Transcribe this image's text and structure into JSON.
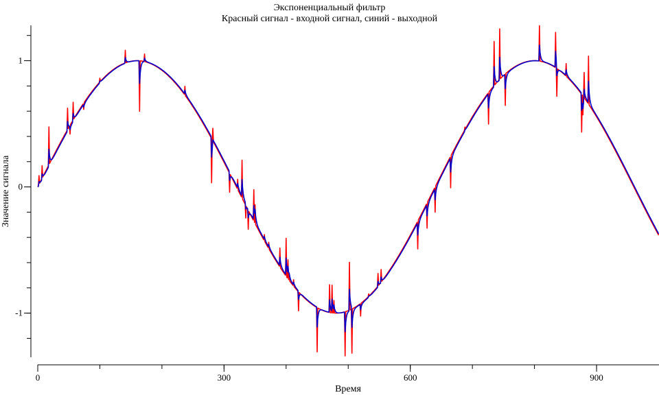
{
  "chart_data": {
    "type": "line",
    "title": "Экспоненциальный фильтр",
    "subtitle": "Красный сигнал - входной сигнал, синий - выходной",
    "xlabel": "Время",
    "ylabel": "Значение сигнала",
    "xlim": [
      0,
      1000
    ],
    "ylim": [
      -1.35,
      1.28
    ],
    "x_ticks": [
      0,
      300,
      600,
      900
    ],
    "x_tick_labels": [
      "0",
      "300",
      "600",
      "900"
    ],
    "x_minor_step": 100,
    "y_ticks": [
      1,
      0,
      -1
    ],
    "y_tick_labels": [
      "1",
      "0",
      "-1"
    ],
    "y_minor_step": 0.2,
    "grid": false,
    "legend": "none",
    "series": [
      {
        "color": "#ff0000",
        "role": "input",
        "base": "sin(2*pi*t/640)",
        "x_range": [
          0,
          1000
        ],
        "spikes": [
          [
            2,
            0.07
          ],
          [
            7,
            0.1
          ],
          [
            18,
            0.3
          ],
          [
            48,
            0.17
          ],
          [
            52,
            -0.07
          ],
          [
            57,
            0.14
          ],
          [
            74,
            -0.05
          ],
          [
            100,
            0.03
          ],
          [
            141,
            0.1
          ],
          [
            164,
            -0.4
          ],
          [
            172,
            0.06
          ],
          [
            237,
            0.07
          ],
          [
            280,
            -0.35
          ],
          [
            282,
            0.1
          ],
          [
            309,
            -0.15
          ],
          [
            322,
            0.08
          ],
          [
            329,
            0.3
          ],
          [
            335,
            -0.1
          ],
          [
            339,
            -0.15
          ],
          [
            348,
            0.25
          ],
          [
            350,
            0.15
          ],
          [
            365,
            0.05
          ],
          [
            372,
            0.05
          ],
          [
            390,
            0.15
          ],
          [
            400,
            0.3
          ],
          [
            403,
            0.15
          ],
          [
            405,
            0.05
          ],
          [
            412,
            0.05
          ],
          [
            420,
            -0.15
          ],
          [
            450,
            -0.35
          ],
          [
            470,
            0.22
          ],
          [
            474,
            0.22
          ],
          [
            477,
            0.1
          ],
          [
            495,
            -0.35
          ],
          [
            502,
            0.38
          ],
          [
            506,
            -0.35
          ],
          [
            520,
            -0.1
          ],
          [
            533,
            0.02
          ],
          [
            548,
            0.1
          ],
          [
            553,
            0.1
          ],
          [
            612,
            -0.22
          ],
          [
            627,
            -0.2
          ],
          [
            640,
            -0.2
          ],
          [
            665,
            -0.25
          ],
          [
            688,
            0.02
          ],
          [
            726,
            -0.25
          ],
          [
            735,
            0.35
          ],
          [
            744,
            0.4
          ],
          [
            753,
            -0.25
          ],
          [
            808,
            0.28
          ],
          [
            834,
            0.28
          ],
          [
            836,
            -0.22
          ],
          [
            851,
            0.1
          ],
          [
            876,
            -0.3
          ],
          [
            878,
            -0.15
          ],
          [
            880,
            0.2
          ],
          [
            887,
            0.38
          ]
        ]
      },
      {
        "color": "#0000cc",
        "role": "output",
        "filter": "exponential",
        "alpha": 0.55,
        "x_range": [
          0,
          1000
        ]
      }
    ]
  }
}
